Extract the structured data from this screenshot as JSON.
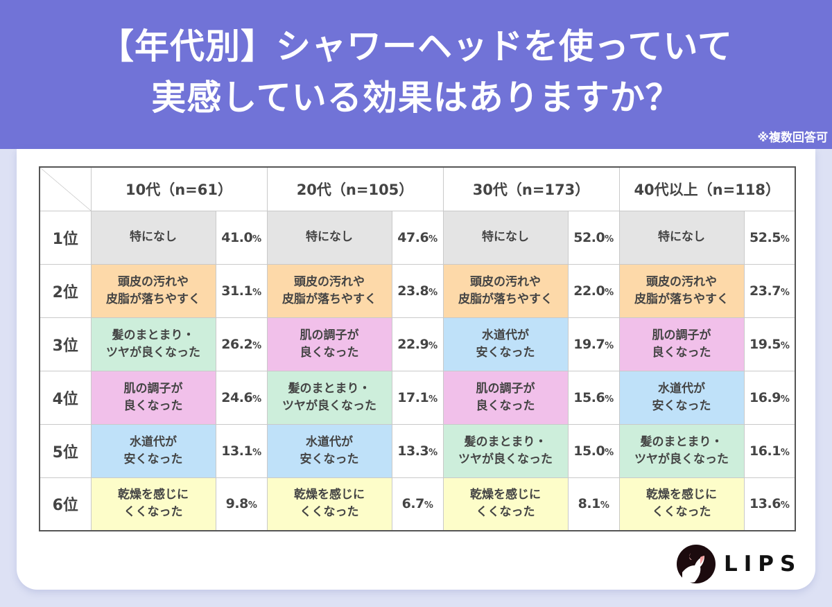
{
  "title_line1": "【年代別】シャワーヘッドを使っていて",
  "title_line2": "実感している効果はありますか？",
  "note": "※複数回答可",
  "brand": "LIPS",
  "colors": {
    "header": "#7173d7",
    "特になし": "#e4e4e4",
    "頭皮の汚れや皮脂が落ちやすく": "#fdd9a9",
    "髪のまとまり・ツヤが良くなった": "#cdeedb",
    "肌の調子が良くなった": "#f1c0ea",
    "水道代が安くなった": "#bfe1f9",
    "乾燥を感じにくくなった": "#fdfdc9"
  },
  "chart_data": {
    "type": "table",
    "ranks": [
      "1位",
      "2位",
      "3位",
      "4位",
      "5位",
      "6位"
    ],
    "columns": [
      {
        "header": "10代（n=61）",
        "items": [
          [
            "特になし",
            "41.0",
            "%"
          ],
          [
            "頭皮の汚れや\n皮脂が落ちやすく",
            "31.1",
            "%"
          ],
          [
            "髪のまとまり・\nツヤが良くなった",
            "26.2",
            "%"
          ],
          [
            "肌の調子が\n良くなった",
            "24.6",
            "%"
          ],
          [
            "水道代が\n安くなった",
            "13.1",
            "%"
          ],
          [
            "乾燥を感じに\nくくなった",
            "9.8",
            "%"
          ]
        ]
      },
      {
        "header": "20代（n=105）",
        "items": [
          [
            "特になし",
            "47.6",
            "%"
          ],
          [
            "頭皮の汚れや\n皮脂が落ちやすく",
            "23.8",
            "%"
          ],
          [
            "肌の調子が\n良くなった",
            "22.9",
            "%"
          ],
          [
            "髪のまとまり・\nツヤが良くなった",
            "17.1",
            "%"
          ],
          [
            "水道代が\n安くなった",
            "13.3",
            "%"
          ],
          [
            "乾燥を感じに\nくくなった",
            "6.7",
            "%"
          ]
        ]
      },
      {
        "header": "30代（n=173）",
        "items": [
          [
            "特になし",
            "52.0",
            "%"
          ],
          [
            "頭皮の汚れや\n皮脂が落ちやすく",
            "22.0",
            "%"
          ],
          [
            "水道代が\n安くなった",
            "19.7",
            "%"
          ],
          [
            "肌の調子が\n良くなった",
            "15.6",
            "%"
          ],
          [
            "髪のまとまり・\nツヤが良くなった",
            "15.0",
            "%"
          ],
          [
            "乾燥を感じに\nくくなった",
            "8.1",
            "%"
          ]
        ]
      },
      {
        "header": "40代以上（n=118）",
        "items": [
          [
            "特になし",
            "52.5",
            "%"
          ],
          [
            "頭皮の汚れや\n皮脂が落ちやすく",
            "23.7",
            "%"
          ],
          [
            "肌の調子が\n良くなった",
            "19.5",
            "%"
          ],
          [
            "水道代が\n安くなった",
            "16.9",
            "%"
          ],
          [
            "髪のまとまり・\nツヤが良くなった",
            "16.1",
            "%"
          ],
          [
            "乾燥を感じに\nくくなった",
            "13.6",
            "%"
          ]
        ]
      }
    ]
  }
}
